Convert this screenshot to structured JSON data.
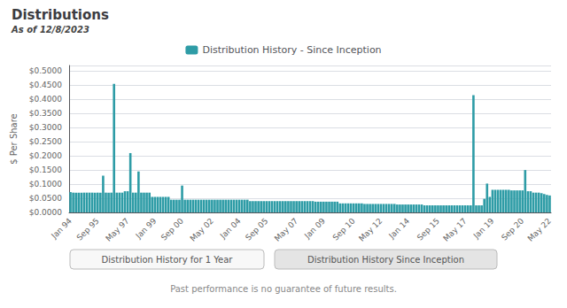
{
  "chart_data": {
    "type": "bar",
    "title": "Distributions",
    "subtitle": "As of 12/8/2023",
    "ylabel": "$ Per Share",
    "categories": [
      "Jan 94",
      null,
      null,
      null,
      null,
      null,
      null,
      null,
      null,
      null,
      "Sep 95",
      null,
      null,
      null,
      null,
      null,
      null,
      null,
      null,
      null,
      null,
      "May 97",
      null,
      null,
      null,
      null,
      null,
      null,
      null,
      null,
      null,
      "Jan 99",
      null,
      null,
      null,
      null,
      null,
      null,
      null,
      null,
      null,
      "Sep 00",
      null,
      null,
      null,
      null,
      null,
      null,
      null,
      null,
      null,
      null,
      "May 02",
      null,
      null,
      null,
      null,
      null,
      null,
      null,
      null,
      null,
      "Jan 04",
      null,
      null,
      null,
      null,
      null,
      null,
      null,
      null,
      null,
      "Sep 05",
      null,
      null,
      null,
      null,
      null,
      null,
      null,
      null,
      null,
      null,
      "May 07",
      null,
      null,
      null,
      null,
      null,
      null,
      null,
      null,
      null,
      "Jan 09",
      null,
      null,
      null,
      null,
      null,
      null,
      null,
      null,
      null,
      null,
      "Sep 10",
      null,
      null,
      null,
      null,
      null,
      null,
      null,
      null,
      null,
      "May 12",
      null,
      null,
      null,
      null,
      null,
      null,
      null,
      null,
      null,
      "Jan 14",
      null,
      null,
      null,
      null,
      null,
      null,
      null,
      null,
      null,
      null,
      "Sep 15",
      null,
      null,
      null,
      null,
      null,
      null,
      null,
      null,
      null,
      "May 17",
      null,
      null,
      null,
      null,
      null,
      null,
      null,
      null,
      null,
      "Jan 19",
      null,
      null,
      null,
      null,
      null,
      null,
      null,
      null,
      null,
      null,
      "Sep 20",
      null,
      null,
      null,
      null,
      null,
      null,
      null,
      null,
      null,
      "May 22"
    ],
    "series": [
      {
        "name": "Distribution History - Since Inception",
        "color": "#2E9CA6",
        "values": [
          0.072,
          0.07,
          0.07,
          0.07,
          0.07,
          0.07,
          0.07,
          0.07,
          0.07,
          0.07,
          0.07,
          0.07,
          0.13,
          0.07,
          0.07,
          0.07,
          0.455,
          0.07,
          0.07,
          0.07,
          0.075,
          0.075,
          0.21,
          0.07,
          0.07,
          0.145,
          0.07,
          0.07,
          0.07,
          0.07,
          0.055,
          0.055,
          0.055,
          0.055,
          0.055,
          0.055,
          0.055,
          0.045,
          0.045,
          0.045,
          0.045,
          0.095,
          0.045,
          0.045,
          0.045,
          0.045,
          0.045,
          0.045,
          0.045,
          0.045,
          0.045,
          0.045,
          0.045,
          0.045,
          0.045,
          0.045,
          0.045,
          0.045,
          0.045,
          0.045,
          0.045,
          0.045,
          0.045,
          0.045,
          0.045,
          0.045,
          0.04,
          0.04,
          0.04,
          0.04,
          0.04,
          0.04,
          0.04,
          0.04,
          0.04,
          0.04,
          0.04,
          0.04,
          0.04,
          0.04,
          0.04,
          0.04,
          0.04,
          0.04,
          0.04,
          0.04,
          0.04,
          0.04,
          0.04,
          0.04,
          0.038,
          0.038,
          0.038,
          0.038,
          0.038,
          0.038,
          0.038,
          0.038,
          0.038,
          0.032,
          0.032,
          0.032,
          0.032,
          0.032,
          0.032,
          0.032,
          0.032,
          0.032,
          0.03,
          0.03,
          0.03,
          0.03,
          0.03,
          0.03,
          0.03,
          0.03,
          0.03,
          0.03,
          0.03,
          0.03,
          0.028,
          0.028,
          0.028,
          0.028,
          0.028,
          0.028,
          0.028,
          0.028,
          0.028,
          0.028,
          0.025,
          0.025,
          0.025,
          0.025,
          0.025,
          0.025,
          0.025,
          0.025,
          0.025,
          0.025,
          0.025,
          0.025,
          0.025,
          0.025,
          0.025,
          0.025,
          0.025,
          0.025,
          0.415,
          0.025,
          0.025,
          0.025,
          0.048,
          0.102,
          0.055,
          0.08,
          0.08,
          0.08,
          0.08,
          0.08,
          0.08,
          0.08,
          0.078,
          0.078,
          0.078,
          0.078,
          0.078,
          0.15,
          0.075,
          0.075,
          0.07,
          0.07,
          0.07,
          0.068,
          0.065,
          0.062,
          0.06
        ]
      }
    ],
    "ylim": [
      0,
      0.52
    ],
    "yticks": [
      {
        "value": 0.0,
        "label": "$0.0000"
      },
      {
        "value": 0.05,
        "label": "$0.0500"
      },
      {
        "value": 0.1,
        "label": "$0.1000"
      },
      {
        "value": 0.15,
        "label": "$0.1500"
      },
      {
        "value": 0.2,
        "label": "$0.2000"
      },
      {
        "value": 0.25,
        "label": "$0.2500"
      },
      {
        "value": 0.3,
        "label": "$0.3000"
      },
      {
        "value": 0.35,
        "label": "$0.3500"
      },
      {
        "value": 0.4,
        "label": "$0.4000"
      },
      {
        "value": 0.45,
        "label": "$0.4500"
      },
      {
        "value": 0.5,
        "label": "$0.5000"
      }
    ],
    "grid": true,
    "legend": "top",
    "annotations": [
      "Distribution History for 1 Year",
      "Distribution History Since Inception",
      "Past performance is no guarantee of future results."
    ]
  }
}
